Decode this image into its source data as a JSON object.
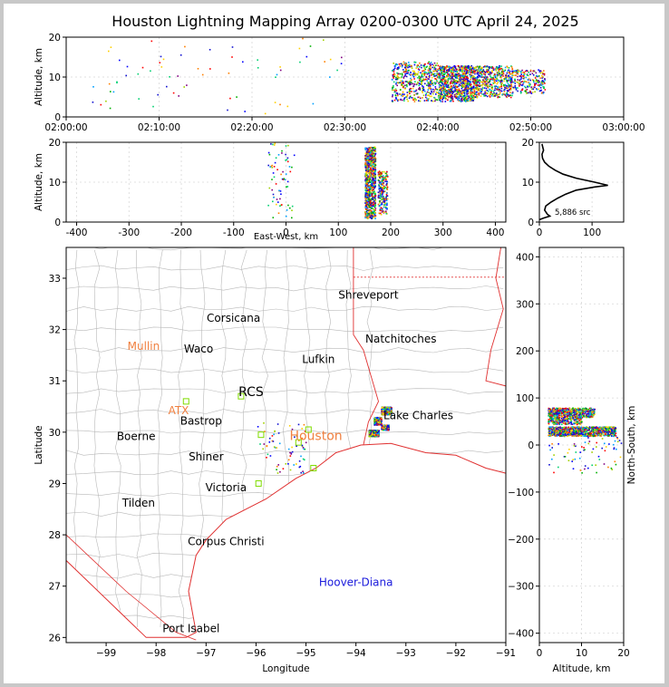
{
  "title": "Houston Lightning Mapping Array 0200-0300 UTC April 24, 2025",
  "colors": {
    "coast": "#e03030",
    "counties": "#b8b8b8",
    "city": "#000000",
    "station_active": "#7fdc00",
    "station_label": "#f08040",
    "storm_label": "#1a1adc",
    "grid": "#d8d8d8"
  },
  "chart_data": [
    {
      "id": "time-height",
      "type": "scatter",
      "xlabel": "",
      "ylabel": "Altitude, km",
      "x_ticks": [
        "02:00:00",
        "02:10:00",
        "02:20:00",
        "02:30:00",
        "02:40:00",
        "02:50:00",
        "03:00:00"
      ],
      "xlim_minutes": [
        0,
        60
      ],
      "ylim": [
        0,
        20
      ],
      "y_ticks": [
        0,
        10,
        20
      ],
      "clusters": [
        {
          "x_minutes": [
            35,
            40
          ],
          "y_km": [
            4,
            14
          ],
          "density": "high"
        },
        {
          "x_minutes": [
            40,
            44
          ],
          "y_km": [
            4,
            13
          ],
          "density": "very-high"
        },
        {
          "x_minutes": [
            44,
            48
          ],
          "y_km": [
            5,
            13
          ],
          "density": "high"
        },
        {
          "x_minutes": [
            48,
            51.5
          ],
          "y_km": [
            6,
            12
          ],
          "density": "medium"
        },
        {
          "x_minutes": [
            2,
            30
          ],
          "y_km": [
            1,
            20
          ],
          "density": "sparse"
        }
      ]
    },
    {
      "id": "east-west-height",
      "type": "scatter",
      "xlabel": "East-West, km",
      "ylabel": "Altitude, km",
      "x_ticks": [
        -400,
        -300,
        -200,
        -100,
        0,
        100,
        200,
        300,
        400
      ],
      "xlim": [
        -420,
        420
      ],
      "ylim": [
        0,
        20
      ],
      "y_ticks": [
        0,
        10,
        20
      ],
      "clusters": [
        {
          "x_km": [
            150,
            170
          ],
          "y_km": [
            1,
            19
          ],
          "density": "very-high"
        },
        {
          "x_km": [
            175,
            193
          ],
          "y_km": [
            2,
            13
          ],
          "density": "medium"
        },
        {
          "x_km": [
            -35,
            15
          ],
          "y_km": [
            1,
            20
          ],
          "density": "sparse"
        }
      ]
    },
    {
      "id": "altitude-histogram",
      "type": "line",
      "xlim": [
        0,
        160
      ],
      "x_ticks": [
        0,
        100
      ],
      "ylim": [
        0,
        20
      ],
      "y_ticks": [
        0,
        10,
        20
      ],
      "annotation": "5,886 src",
      "profile": [
        [
          0,
          0.6
        ],
        [
          8,
          1
        ],
        [
          20,
          1.5
        ],
        [
          15,
          2
        ],
        [
          10,
          3
        ],
        [
          12,
          4
        ],
        [
          22,
          5
        ],
        [
          35,
          6
        ],
        [
          50,
          7
        ],
        [
          70,
          8
        ],
        [
          105,
          8.8
        ],
        [
          130,
          9.2
        ],
        [
          105,
          10
        ],
        [
          70,
          11
        ],
        [
          45,
          12
        ],
        [
          30,
          13
        ],
        [
          18,
          14
        ],
        [
          10,
          15
        ],
        [
          6,
          16
        ],
        [
          5,
          17
        ],
        [
          8,
          18
        ],
        [
          6,
          19
        ],
        [
          5,
          19.6
        ]
      ]
    },
    {
      "id": "plan-view-map",
      "type": "scatter",
      "xlabel": "Longitude",
      "ylabel": "Latitude",
      "x_ticks": [
        -99,
        -98,
        -97,
        -96,
        -95,
        -94,
        -93,
        -92,
        -91
      ],
      "xlim": [
        -99.8,
        -91
      ],
      "y_ticks": [
        26,
        27,
        28,
        29,
        30,
        31,
        32,
        33
      ],
      "ylim": [
        25.9,
        33.6
      ],
      "cities": [
        {
          "name": "Shreveport",
          "lon": -93.75,
          "lat": 32.6
        },
        {
          "name": "Corsicana",
          "lon": -96.45,
          "lat": 32.15
        },
        {
          "name": "Natchitoches",
          "lon": -93.1,
          "lat": 31.75
        },
        {
          "name": "Waco",
          "lon": -97.15,
          "lat": 31.55
        },
        {
          "name": "Lufkin",
          "lon": -94.75,
          "lat": 31.35
        },
        {
          "name": "RCS",
          "lon": -96.1,
          "lat": 30.7
        },
        {
          "name": "Bastrop",
          "lon": -97.1,
          "lat": 30.15
        },
        {
          "name": "Lake Charles",
          "lon": -92.75,
          "lat": 30.25
        },
        {
          "name": "Boerne",
          "lon": -98.4,
          "lat": 29.85
        },
        {
          "name": "Shiner",
          "lon": -97.0,
          "lat": 29.45
        },
        {
          "name": "Victoria",
          "lon": -96.6,
          "lat": 28.85
        },
        {
          "name": "Tilden",
          "lon": -98.35,
          "lat": 28.55
        },
        {
          "name": "Corpus Christi",
          "lon": -96.6,
          "lat": 27.8
        },
        {
          "name": "Port Isabel",
          "lon": -97.3,
          "lat": 26.1
        }
      ],
      "stations": [
        {
          "name": "Mullin",
          "lon": -98.25,
          "lat": 31.6
        },
        {
          "name": "ATX",
          "lon": -97.55,
          "lat": 30.35
        },
        {
          "name": "Houston",
          "lon": -94.8,
          "lat": 29.85
        }
      ],
      "storm_label": {
        "name": "Hoover-Diana",
        "lon": -94.0,
        "lat": 27.0
      },
      "clusters": [
        {
          "lon": [
            -93.75,
            -93.55
          ],
          "lat": [
            29.93,
            30.05
          ],
          "density": "very-high"
        },
        {
          "lon": [
            -93.5,
            -93.3
          ],
          "lat": [
            30.35,
            30.5
          ],
          "density": "high"
        },
        {
          "lon": [
            -93.65,
            -93.5
          ],
          "lat": [
            30.15,
            30.3
          ],
          "density": "medium"
        },
        {
          "lon": [
            -93.5,
            -93.35
          ],
          "lat": [
            30.05,
            30.15
          ],
          "density": "medium"
        },
        {
          "lon": [
            -96.0,
            -95.0
          ],
          "lat": [
            29.2,
            30.2
          ],
          "density": "sparse"
        }
      ]
    },
    {
      "id": "north-south-height",
      "type": "scatter",
      "xlabel": "Altitude, km",
      "ylabel": "North-South, km",
      "x_ticks": [
        0,
        10,
        20
      ],
      "xlim": [
        0,
        20
      ],
      "y_ticks": [
        -400,
        -300,
        -200,
        -100,
        0,
        100,
        200,
        300,
        400
      ],
      "ylim": [
        -420,
        420
      ],
      "clusters": [
        {
          "x_km": [
            2,
            18
          ],
          "y_km": [
            20,
            40
          ],
          "density": "very-high"
        },
        {
          "x_km": [
            2,
            13
          ],
          "y_km": [
            60,
            80
          ],
          "density": "high"
        },
        {
          "x_km": [
            2,
            10
          ],
          "y_km": [
            45,
            60
          ],
          "density": "medium"
        },
        {
          "x_km": [
            2,
            20
          ],
          "y_km": [
            -60,
            20
          ],
          "density": "sparse"
        }
      ]
    }
  ]
}
